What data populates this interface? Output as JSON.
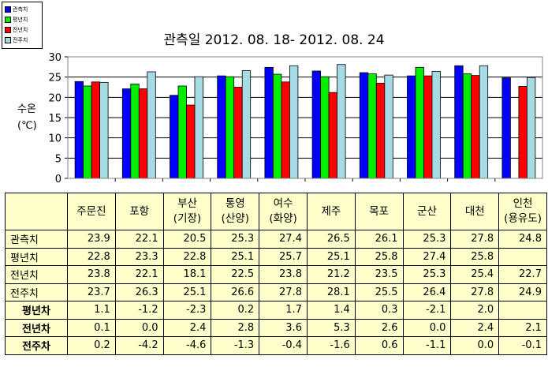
{
  "chart_data": {
    "type": "bar",
    "title": "관측일 2012. 08. 18-  2012. 08. 24",
    "ylabel": "수온 (℃)",
    "ylim": [
      0,
      30
    ],
    "yticks": [
      0,
      5,
      10,
      15,
      20,
      25,
      30
    ],
    "grid": true,
    "legend_position": "top-left",
    "categories": [
      "주문진",
      "포항",
      "부산(기장)",
      "통영(산양)",
      "여수(화양)",
      "제주",
      "목포",
      "군산",
      "대천",
      "인천(용유도)"
    ],
    "series": [
      {
        "name": "관측치",
        "color": "#0000ff",
        "values": [
          23.9,
          22.1,
          20.5,
          25.3,
          27.4,
          26.5,
          26.1,
          25.3,
          27.8,
          24.8
        ]
      },
      {
        "name": "평년치",
        "color": "#00ee00",
        "values": [
          22.8,
          23.3,
          22.8,
          25.1,
          25.7,
          25.1,
          25.8,
          27.4,
          25.8,
          null
        ]
      },
      {
        "name": "전년치",
        "color": "#ff0000",
        "values": [
          23.8,
          22.1,
          18.1,
          22.5,
          23.8,
          21.2,
          23.5,
          25.3,
          25.4,
          22.7
        ]
      },
      {
        "name": "전주치",
        "color": "#a6dbe6",
        "values": [
          23.7,
          26.3,
          25.1,
          26.6,
          27.8,
          28.1,
          25.5,
          26.4,
          27.8,
          24.9
        ]
      }
    ]
  },
  "table": {
    "headers": [
      [
        "주문진"
      ],
      [
        "포항"
      ],
      [
        "부산",
        "(기장)"
      ],
      [
        "통영",
        "(산양)"
      ],
      [
        "여수",
        "(화양)"
      ],
      [
        "제주"
      ],
      [
        "목포"
      ],
      [
        "군산"
      ],
      [
        "대천"
      ],
      [
        "인천",
        "(용유도)"
      ]
    ],
    "rows": [
      {
        "label": "관측치",
        "bold": false,
        "values": [
          "23.9",
          "22.1",
          "20.5",
          "25.3",
          "27.4",
          "26.5",
          "26.1",
          "25.3",
          "27.8",
          "24.8"
        ]
      },
      {
        "label": "평년치",
        "bold": false,
        "values": [
          "22.8",
          "23.3",
          "22.8",
          "25.1",
          "25.7",
          "25.1",
          "25.8",
          "27.4",
          "25.8",
          ""
        ]
      },
      {
        "label": "전년치",
        "bold": false,
        "values": [
          "23.8",
          "22.1",
          "18.1",
          "22.5",
          "23.8",
          "21.2",
          "23.5",
          "25.3",
          "25.4",
          "22.7"
        ]
      },
      {
        "label": "전주치",
        "bold": false,
        "values": [
          "23.7",
          "26.3",
          "25.1",
          "26.6",
          "27.8",
          "28.1",
          "25.5",
          "26.4",
          "27.8",
          "24.9"
        ]
      },
      {
        "label": "평년차",
        "bold": true,
        "values": [
          "1.1",
          "-1.2",
          "-2.3",
          "0.2",
          "1.7",
          "1.4",
          "0.3",
          "-2.1",
          "2.0",
          ""
        ]
      },
      {
        "label": "전년차",
        "bold": true,
        "values": [
          "0.1",
          "0.0",
          "2.4",
          "2.8",
          "3.6",
          "5.3",
          "2.6",
          "0.0",
          "2.4",
          "2.1"
        ]
      },
      {
        "label": "전주차",
        "bold": true,
        "values": [
          "0.2",
          "-4.2",
          "-4.6",
          "-1.3",
          "-0.4",
          "-1.6",
          "0.6",
          "-1.1",
          "0.0",
          "-0.1"
        ]
      }
    ]
  }
}
